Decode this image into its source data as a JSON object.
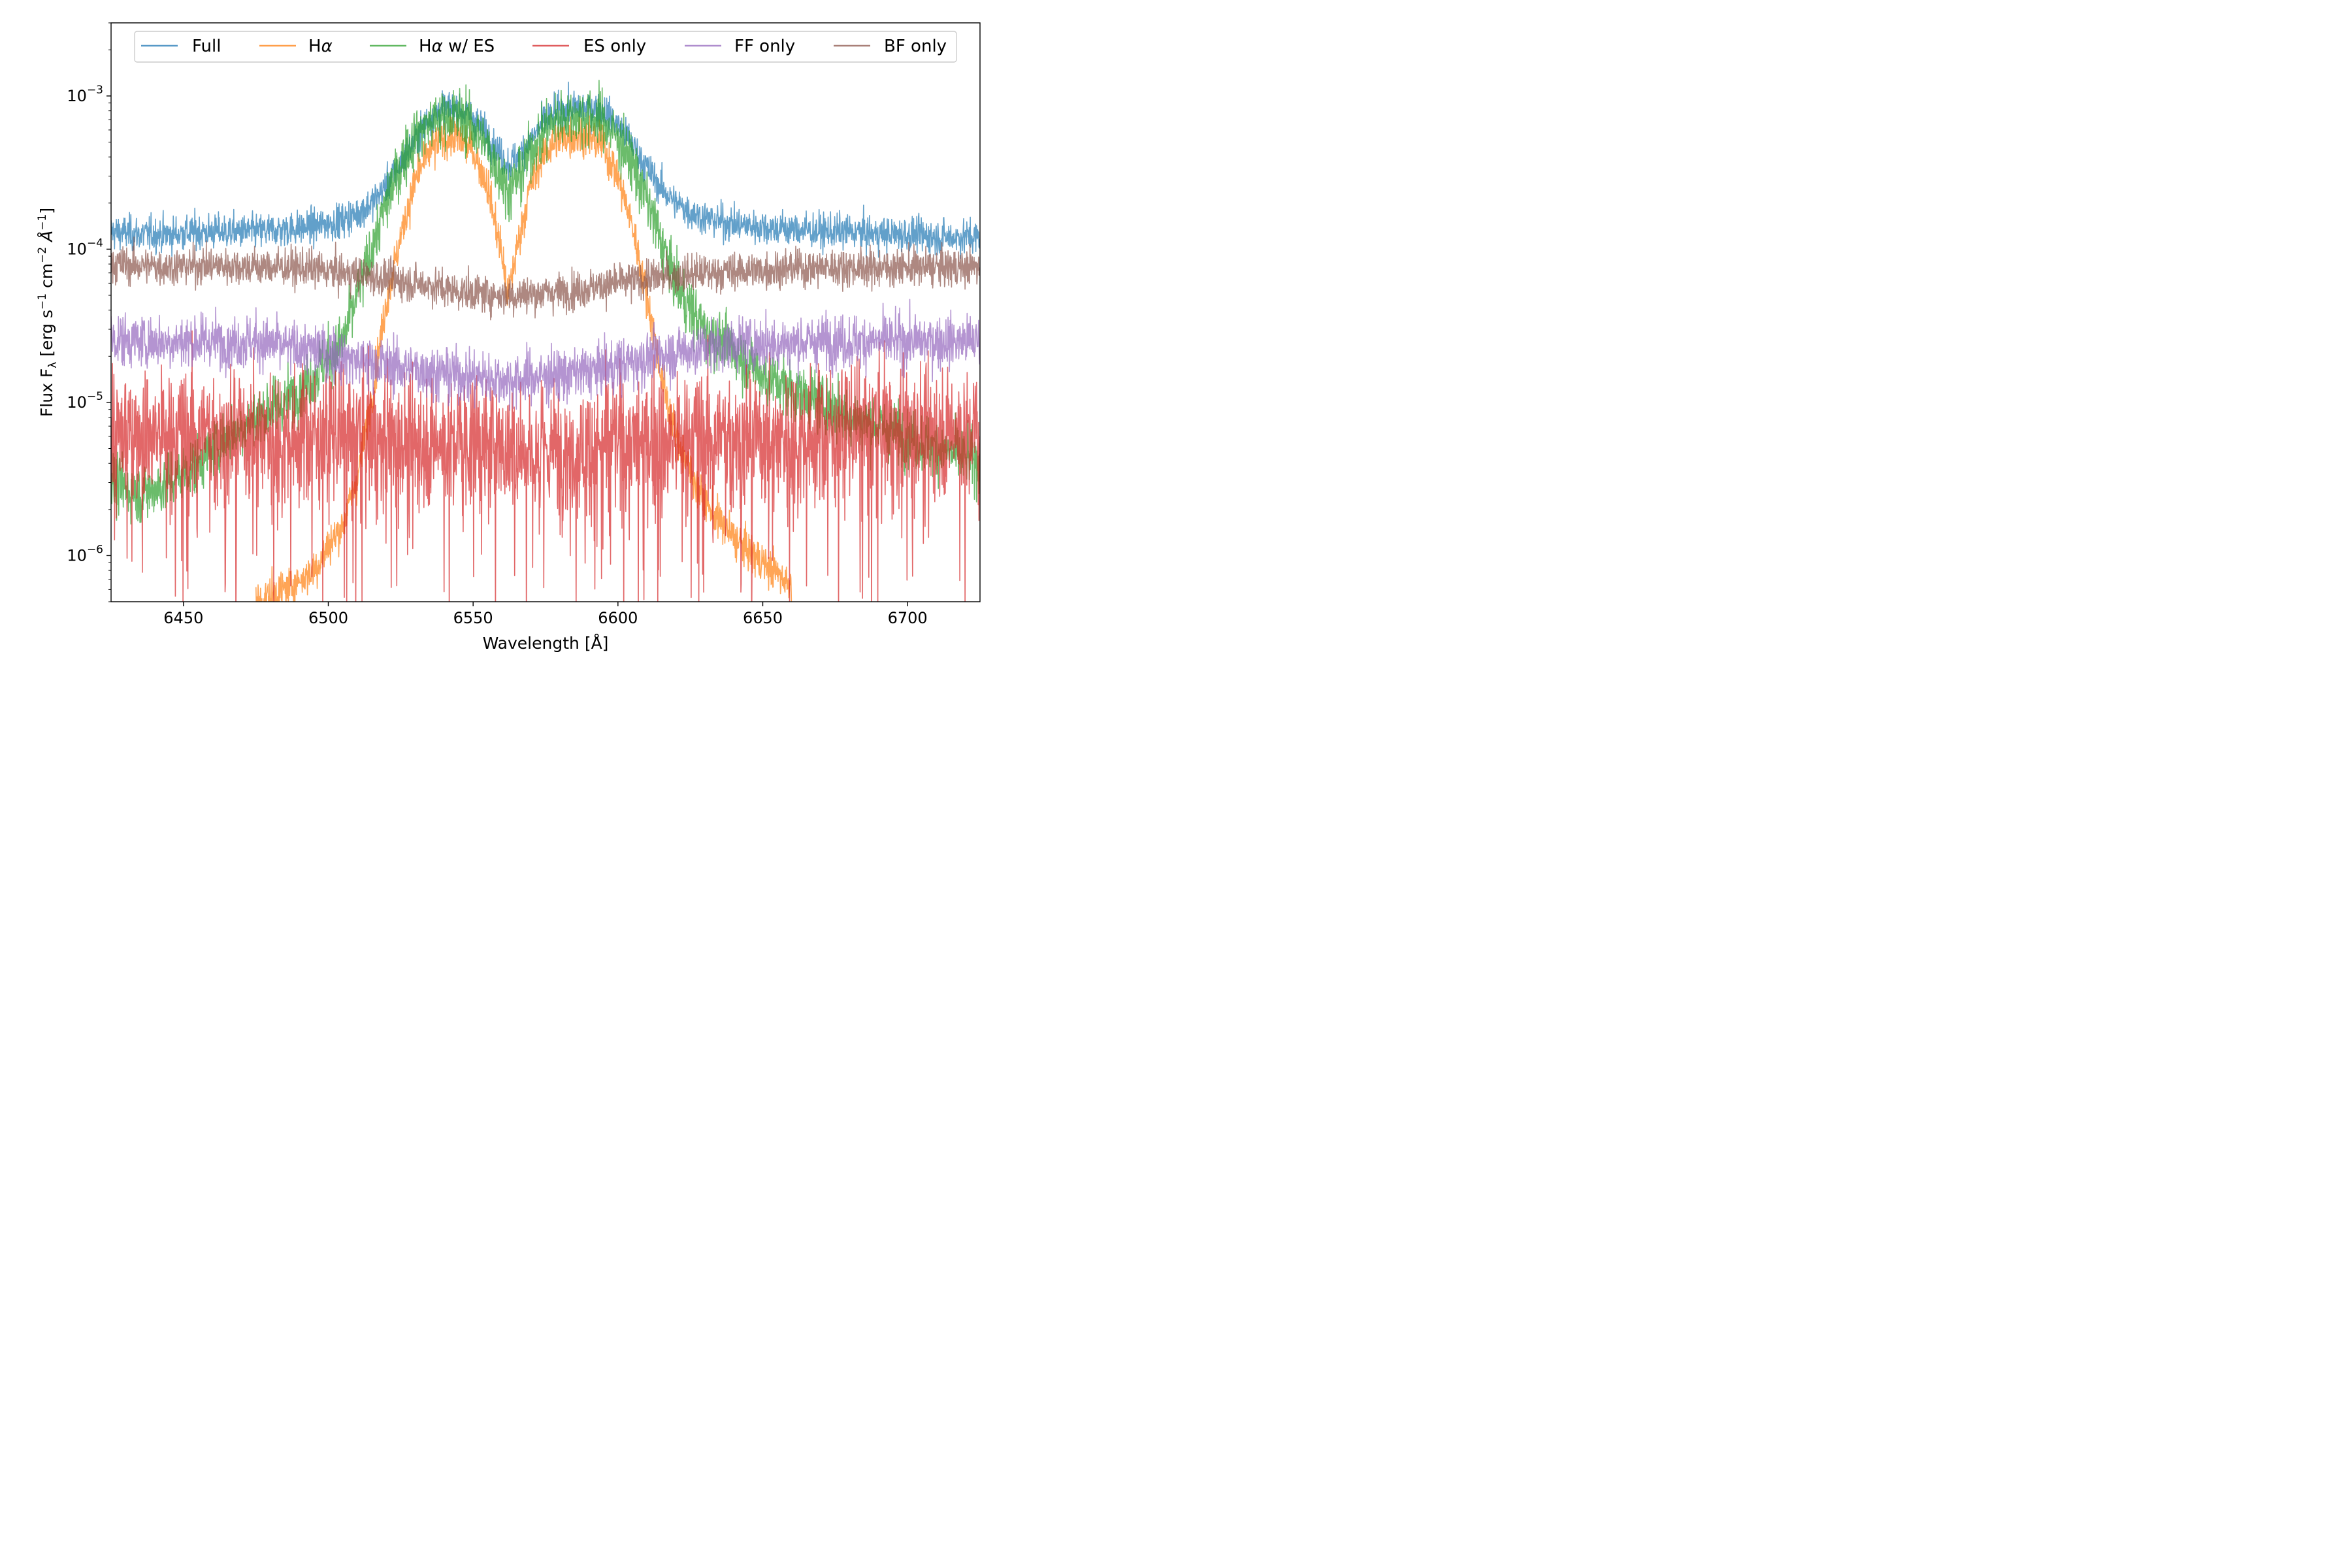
{
  "chart_data": {
    "type": "line",
    "title": "",
    "xlabel": "Wavelength [Å]",
    "ylabel": "Flux F_λ [erg s^-1 cm^-2 Å^-1]",
    "yscale": "log",
    "xlim": [
      6425,
      6725
    ],
    "ylim": [
      5e-07,
      0.003
    ],
    "xticks": [
      6450,
      6500,
      6550,
      6600,
      6650,
      6700
    ],
    "xtick_labels": [
      "6450",
      "6500",
      "6550",
      "6600",
      "6650",
      "6700"
    ],
    "yticks": [
      1e-06,
      1e-05,
      0.0001,
      0.001
    ],
    "ytick_labels": [
      {
        "base": "10",
        "exp": "−6"
      },
      {
        "base": "10",
        "exp": "−5"
      },
      {
        "base": "10",
        "exp": "−4"
      },
      {
        "base": "10",
        "exp": "−3"
      }
    ],
    "grid": false,
    "legend": {
      "placement": "top",
      "columns": 6
    },
    "x": [
      6425,
      6435,
      6445,
      6455,
      6465,
      6475,
      6485,
      6495,
      6505,
      6510,
      6515,
      6520,
      6525,
      6530,
      6535,
      6540,
      6545,
      6550,
      6555,
      6560,
      6562,
      6565,
      6570,
      6575,
      6580,
      6585,
      6590,
      6595,
      6600,
      6605,
      6610,
      6615,
      6620,
      6625,
      6630,
      6640,
      6650,
      6660,
      6670,
      6680,
      6690,
      6700,
      6710,
      6725
    ],
    "series": [
      {
        "name": "Full",
        "color": "#1f77b4",
        "noise": 0.13,
        "values": [
          0.00013,
          0.000125,
          0.000125,
          0.00013,
          0.00013,
          0.00013,
          0.000135,
          0.00014,
          0.000155,
          0.00017,
          0.0002,
          0.00026,
          0.00036,
          0.00052,
          0.00073,
          0.00083,
          0.00082,
          0.00072,
          0.00055,
          0.0004,
          0.00036,
          0.00039,
          0.00052,
          0.00069,
          0.0008,
          0.00083,
          0.00084,
          0.0008,
          0.00065,
          0.00048,
          0.00034,
          0.00025,
          0.0002,
          0.000175,
          0.00016,
          0.000145,
          0.00014,
          0.000135,
          0.00013,
          0.00013,
          0.000125,
          0.000125,
          0.00012,
          0.00012
        ]
      },
      {
        "name": "Hα",
        "color": "#ff7f0e",
        "noise": 0.15,
        "values": [
          null,
          null,
          null,
          null,
          null,
          5e-07,
          6e-07,
          8e-07,
          1.6e-06,
          3.2e-06,
          1.1e-05,
          4.5e-05,
          0.00012,
          0.00028,
          0.00044,
          0.00053,
          0.00053,
          0.00044,
          0.00026,
          9e-05,
          4.8e-05,
          0.0001,
          0.00027,
          0.00044,
          0.00053,
          0.00055,
          0.00054,
          0.00047,
          0.0003,
          0.00014,
          5e-05,
          1.5e-05,
          6e-06,
          3.6e-06,
          2.2e-06,
          1.3e-06,
          9e-07,
          6.5e-07,
          null,
          null,
          null,
          null,
          null,
          null
        ]
      },
      {
        "name": "Hα w/ ES",
        "color": "#2ca02c",
        "noise": 0.22,
        "values": [
          3e-06,
          2.5e-06,
          3e-06,
          4e-06,
          6e-06,
          8e-06,
          1e-05,
          1.5e-05,
          2.5e-05,
          5e-05,
          0.0001,
          0.0002,
          0.00035,
          0.00055,
          0.00068,
          0.00073,
          0.00073,
          0.00063,
          0.00046,
          0.0003,
          0.00024,
          0.00028,
          0.00044,
          0.00062,
          0.00072,
          0.00074,
          0.00074,
          0.00068,
          0.00053,
          0.00036,
          0.00021,
          0.00011,
          6e-05,
          4e-05,
          3e-05,
          2.2e-05,
          1.5e-05,
          1.2e-05,
          1e-05,
          8e-06,
          7e-06,
          6e-06,
          5e-06,
          4e-06
        ]
      },
      {
        "name": "ES only",
        "color": "#d62728",
        "noise": 0.5,
        "values": [
          6e-06,
          6.5e-06,
          6e-06,
          6.5e-06,
          6e-06,
          6.5e-06,
          6e-06,
          6e-06,
          6e-06,
          6e-06,
          6e-06,
          6e-06,
          5.5e-06,
          5.5e-06,
          5.5e-06,
          5.5e-06,
          5.5e-06,
          5.5e-06,
          5e-06,
          5e-06,
          5e-06,
          5e-06,
          5e-06,
          5e-06,
          5e-06,
          5e-06,
          5e-06,
          5.5e-06,
          5.5e-06,
          5.5e-06,
          5.5e-06,
          5.5e-06,
          5.5e-06,
          6e-06,
          6e-06,
          6e-06,
          6e-06,
          6e-06,
          6e-06,
          6.5e-06,
          6.5e-06,
          6.5e-06,
          6.5e-06,
          6.5e-06
        ]
      },
      {
        "name": "FF only",
        "color": "#9467bd",
        "noise": 0.2,
        "values": [
          2.6e-05,
          2.5e-05,
          2.5e-05,
          2.5e-05,
          2.5e-05,
          2.5e-05,
          2.3e-05,
          2.2e-05,
          2e-05,
          1.9e-05,
          1.8e-05,
          1.75e-05,
          1.7e-05,
          1.65e-05,
          1.6e-05,
          1.55e-05,
          1.5e-05,
          1.5e-05,
          1.45e-05,
          1.4e-05,
          1.4e-05,
          1.4e-05,
          1.45e-05,
          1.5e-05,
          1.5e-05,
          1.55e-05,
          1.6e-05,
          1.65e-05,
          1.75e-05,
          1.85e-05,
          1.95e-05,
          2.05e-05,
          2.1e-05,
          2.2e-05,
          2.3e-05,
          2.4e-05,
          2.4e-05,
          2.45e-05,
          2.5e-05,
          2.5e-05,
          2.5e-05,
          2.5e-05,
          2.5e-05,
          2.5e-05
        ]
      },
      {
        "name": "BF only",
        "color": "#8c564b",
        "noise": 0.14,
        "values": [
          8e-05,
          7.8e-05,
          7.7e-05,
          7.8e-05,
          7.8e-05,
          7.7e-05,
          7.6e-05,
          7.4e-05,
          7e-05,
          6.8e-05,
          6.6e-05,
          6.4e-05,
          6.2e-05,
          6e-05,
          5.8e-05,
          5.5e-05,
          5.3e-05,
          5.2e-05,
          5.1e-05,
          5e-05,
          5e-05,
          5e-05,
          5.1e-05,
          5.2e-05,
          5.3e-05,
          5.4e-05,
          5.6e-05,
          5.8e-05,
          6e-05,
          6.2e-05,
          6.4e-05,
          6.6e-05,
          6.7e-05,
          6.9e-05,
          7e-05,
          7.2e-05,
          7.3e-05,
          7.5e-05,
          7.6e-05,
          7.6e-05,
          7.6e-05,
          7.6e-05,
          7.6e-05,
          7.6e-05
        ]
      }
    ]
  }
}
